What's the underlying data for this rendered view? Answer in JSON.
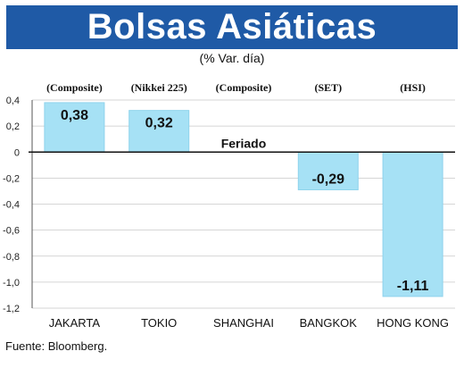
{
  "header": {
    "title": "Bolsas Asiáticas",
    "subtitle": "(% Var. día)"
  },
  "footer": {
    "source": "Fuente: Bloomberg."
  },
  "colors": {
    "title_bg": "#1f5aa6",
    "bar": "#a6e1f5",
    "bar_stroke": "#8fd3ec",
    "grid": "#c8c8c8"
  },
  "chart_data": {
    "type": "bar",
    "categories": [
      "JAKARTA",
      "TOKIO",
      "SHANGHAI",
      "BANGKOK",
      "HONG KONG"
    ],
    "index_names": [
      "(Composite)",
      "(Nikkei 225)",
      "(Composite)",
      "(SET)",
      "(HSI)"
    ],
    "values": [
      0.38,
      0.32,
      null,
      -0.29,
      -1.11
    ],
    "value_labels": [
      "0,38",
      "0,32",
      "",
      "-0,29",
      "-1,11"
    ],
    "annotations": [
      {
        "category": "SHANGHAI",
        "text": "Feriado"
      }
    ],
    "ylim": [
      -1.2,
      0.4
    ],
    "yticks": [
      0.4,
      0.2,
      0,
      -0.2,
      -0.4,
      -0.6,
      -0.8,
      -1.0,
      -1.2
    ],
    "ytick_labels": [
      "0,4",
      "0,2",
      "0",
      "-0,2",
      "-0,4",
      "-0,6",
      "-0,8",
      "-1,0",
      "-1,2"
    ],
    "grid": true,
    "legend": "none"
  }
}
